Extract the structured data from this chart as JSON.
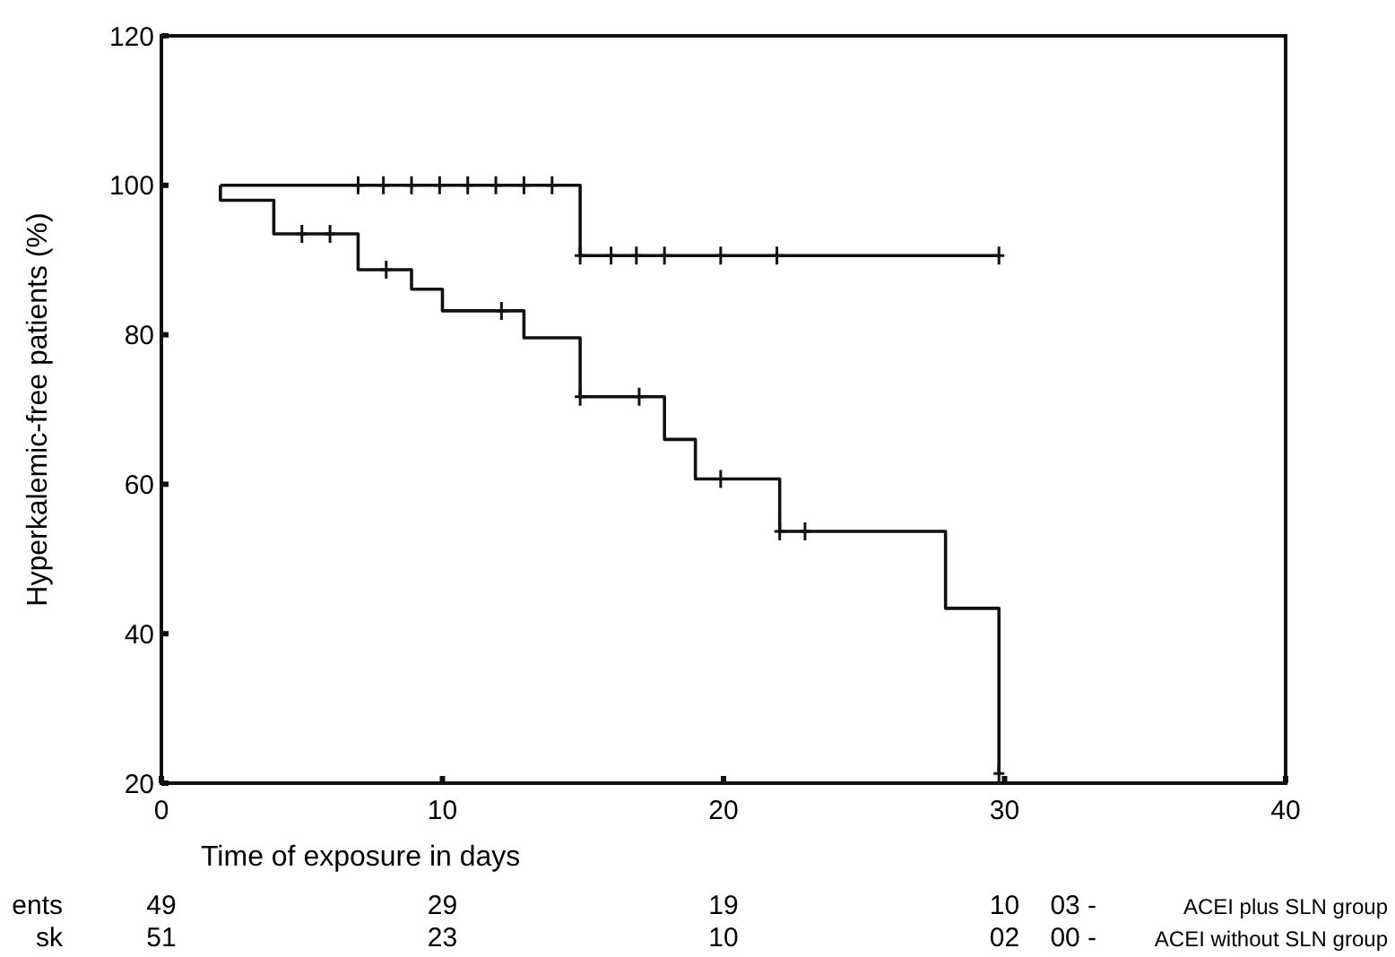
{
  "chart_data": {
    "type": "step",
    "xlabel": "Time of exposure in days",
    "ylabel": "Hyperkalemic-free patients (%)",
    "xlim": [
      0,
      40
    ],
    "xticks": [
      0,
      10,
      20,
      30,
      40
    ],
    "ylim": [
      20,
      120
    ],
    "yticks": [
      20,
      40,
      60,
      80,
      100,
      120
    ],
    "grid": false,
    "series": [
      {
        "color": "#111111",
        "x": [
          2.1,
          14.9,
          29.8
        ],
        "values": [
          100,
          90.6,
          90.6
        ]
      },
      {
        "color": "#111111",
        "x": [
          2.1,
          2.1,
          4.0,
          7.0,
          8.9,
          10.0,
          12.9,
          14.9,
          17.9,
          19.0,
          22.0,
          27.9,
          29.8
        ],
        "values": [
          100,
          98,
          93.5,
          88.7,
          86.1,
          83.2,
          79.6,
          71.7,
          66.0,
          60.7,
          53.7,
          43.4,
          21.3
        ]
      },
      {
        "type": "scatter",
        "marker": "cross",
        "color": "#111111",
        "x": [
          7.0,
          7.9,
          8.9,
          9.9,
          10.9,
          11.9,
          12.9,
          13.9,
          14.9,
          16.0,
          16.9,
          17.9,
          19.9,
          21.9,
          29.8
        ],
        "values": [
          100,
          100,
          100,
          100,
          100,
          100,
          100,
          100,
          90.6,
          90.6,
          90.6,
          90.6,
          90.6,
          90.6,
          90.6
        ]
      },
      {
        "type": "scatter",
        "marker": "cross",
        "color": "#111111",
        "x": [
          5.0,
          6.0,
          8.0,
          12.1,
          14.9,
          17.0,
          19.9,
          22.0,
          22.9,
          29.8
        ],
        "values": [
          93.5,
          93.5,
          88.7,
          83.2,
          71.7,
          71.7,
          60.7,
          53.7,
          53.7,
          21.3
        ]
      }
    ],
    "annotations": [
      "ents",
      "49",
      "29",
      "19",
      "10",
      "03 -",
      "ACEI plus SLN group",
      "sk",
      "51",
      "23",
      "10",
      "02",
      "00 -",
      "ACEI without SLN group"
    ]
  }
}
